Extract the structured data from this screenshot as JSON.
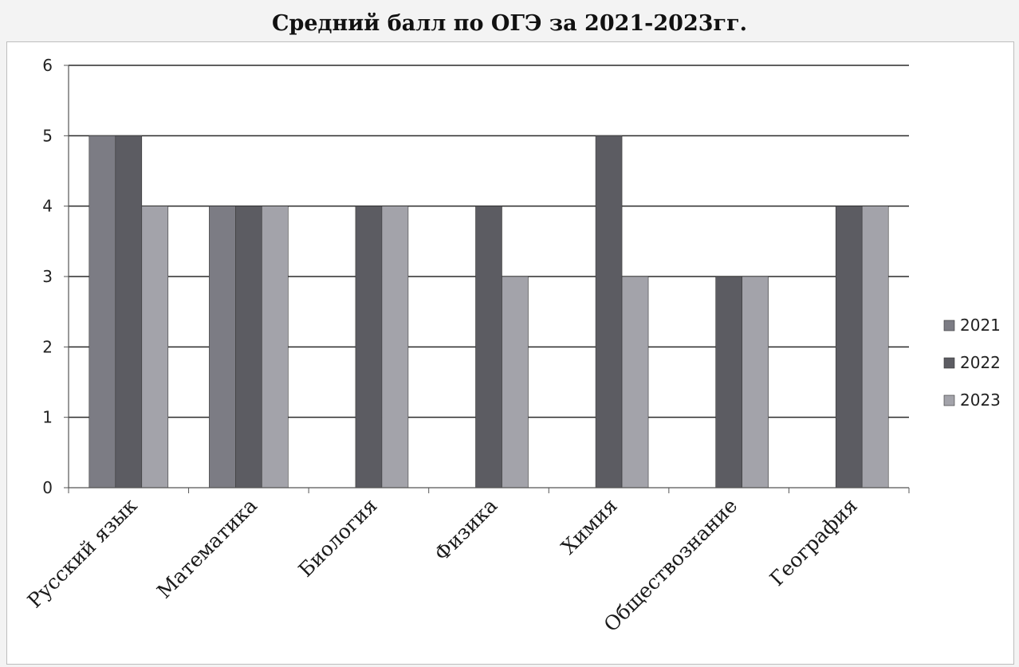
{
  "chart_data": {
    "type": "bar",
    "title": "Средний балл по ОГЭ за 2021-2023гг.",
    "xlabel": "",
    "ylabel": "",
    "ylim": [
      0,
      6
    ],
    "yticks": [
      "0",
      "1",
      "2",
      "3",
      "4",
      "5",
      "6"
    ],
    "grid": true,
    "legend_position": "right",
    "categories": [
      "Русский язык",
      "Математика",
      "Биология",
      "Физика",
      "Химия",
      "Обществознание",
      "География"
    ],
    "series": [
      {
        "name": "2021",
        "color": "#7c7c84",
        "values": [
          5,
          4,
          0,
          0,
          0,
          0,
          0
        ]
      },
      {
        "name": "2022",
        "color": "#5c5c62",
        "values": [
          5,
          4,
          4,
          4,
          5,
          3,
          4
        ]
      },
      {
        "name": "2023",
        "color": "#a3a3aa",
        "values": [
          4,
          4,
          4,
          3,
          3,
          3,
          4
        ]
      }
    ]
  }
}
